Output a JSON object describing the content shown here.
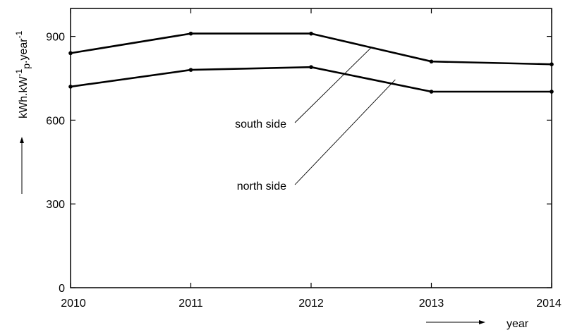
{
  "chart_data": {
    "type": "line",
    "x": [
      2010,
      2011,
      2012,
      2013,
      2014
    ],
    "x_tick_labels": [
      "2010",
      "2011",
      "2012",
      "2013",
      "2014"
    ],
    "y_ticks": [
      0,
      300,
      600,
      900
    ],
    "y_tick_labels": [
      "0",
      "300",
      "600",
      "900"
    ],
    "xlim": [
      2010,
      2014
    ],
    "ylim": [
      0,
      1000
    ],
    "xlabel": "year",
    "ylabel": {
      "base": "kWh.kW",
      "sup1": "-1",
      "sub": "p",
      "mid": ".year",
      "sup2": "-1"
    },
    "grid": false,
    "series": [
      {
        "name": "south side",
        "values": [
          840,
          910,
          910,
          810,
          800
        ],
        "color": "#000000"
      },
      {
        "name": "north side",
        "values": [
          720,
          780,
          790,
          702,
          702
        ],
        "color": "#000000"
      }
    ],
    "annotations": [
      {
        "text": "south side",
        "points_to": {
          "x": 2012.5,
          "y": 860
        }
      },
      {
        "text": "north side",
        "points_to": {
          "x": 2012.7,
          "y": 745
        }
      }
    ]
  }
}
